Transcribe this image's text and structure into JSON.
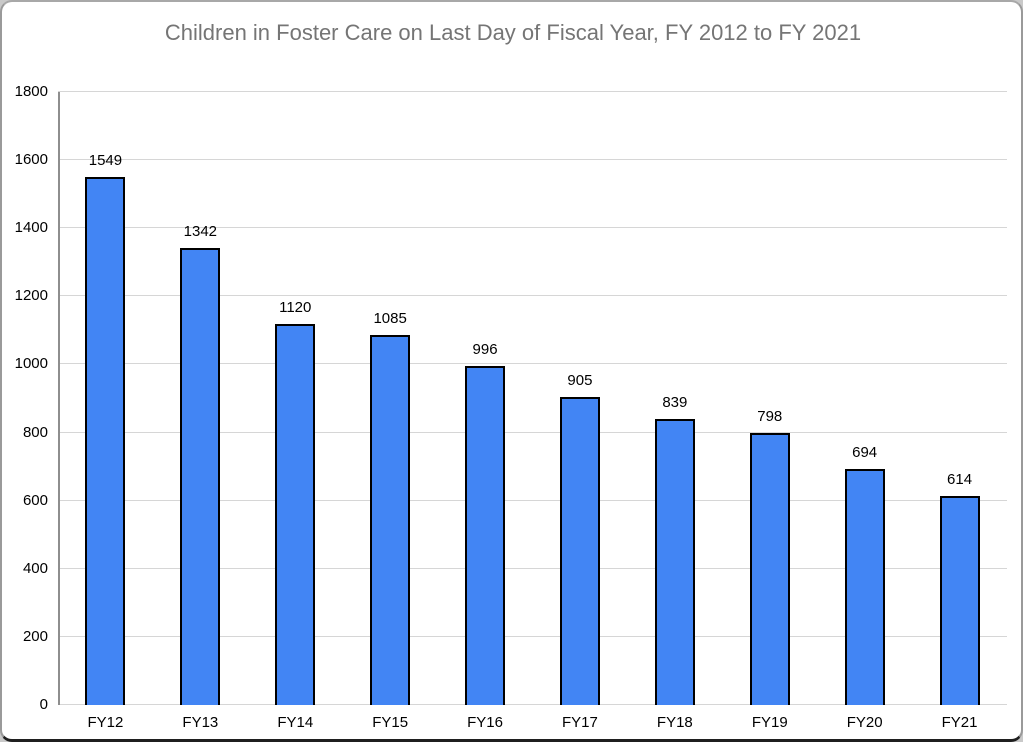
{
  "chart_data": {
    "type": "bar",
    "title": "Children in Foster Care on Last Day of Fiscal Year, FY 2012 to FY 2021",
    "categories": [
      "FY12",
      "FY13",
      "FY14",
      "FY15",
      "FY16",
      "FY17",
      "FY18",
      "FY19",
      "FY20",
      "FY21"
    ],
    "values": [
      1549,
      1342,
      1120,
      1085,
      996,
      905,
      839,
      798,
      694,
      614
    ],
    "data_labels": [
      "1549",
      "1342",
      "1120",
      "1085",
      "996",
      "905",
      "839",
      "798",
      "694",
      "614"
    ],
    "xlabel": "",
    "ylabel": "",
    "ylim": [
      0,
      1800
    ],
    "yticks": [
      0,
      200,
      400,
      600,
      800,
      1000,
      1200,
      1400,
      1600,
      1800
    ],
    "grid": true,
    "legend_position": "none",
    "colors": {
      "bar_fill": "#4285f4",
      "bar_border": "#000000",
      "title_text": "#757575",
      "tick_text": "#000000",
      "gridline": "#d6d6d6",
      "axis_line": "#8e8e8e",
      "background": "#ffffff"
    }
  }
}
